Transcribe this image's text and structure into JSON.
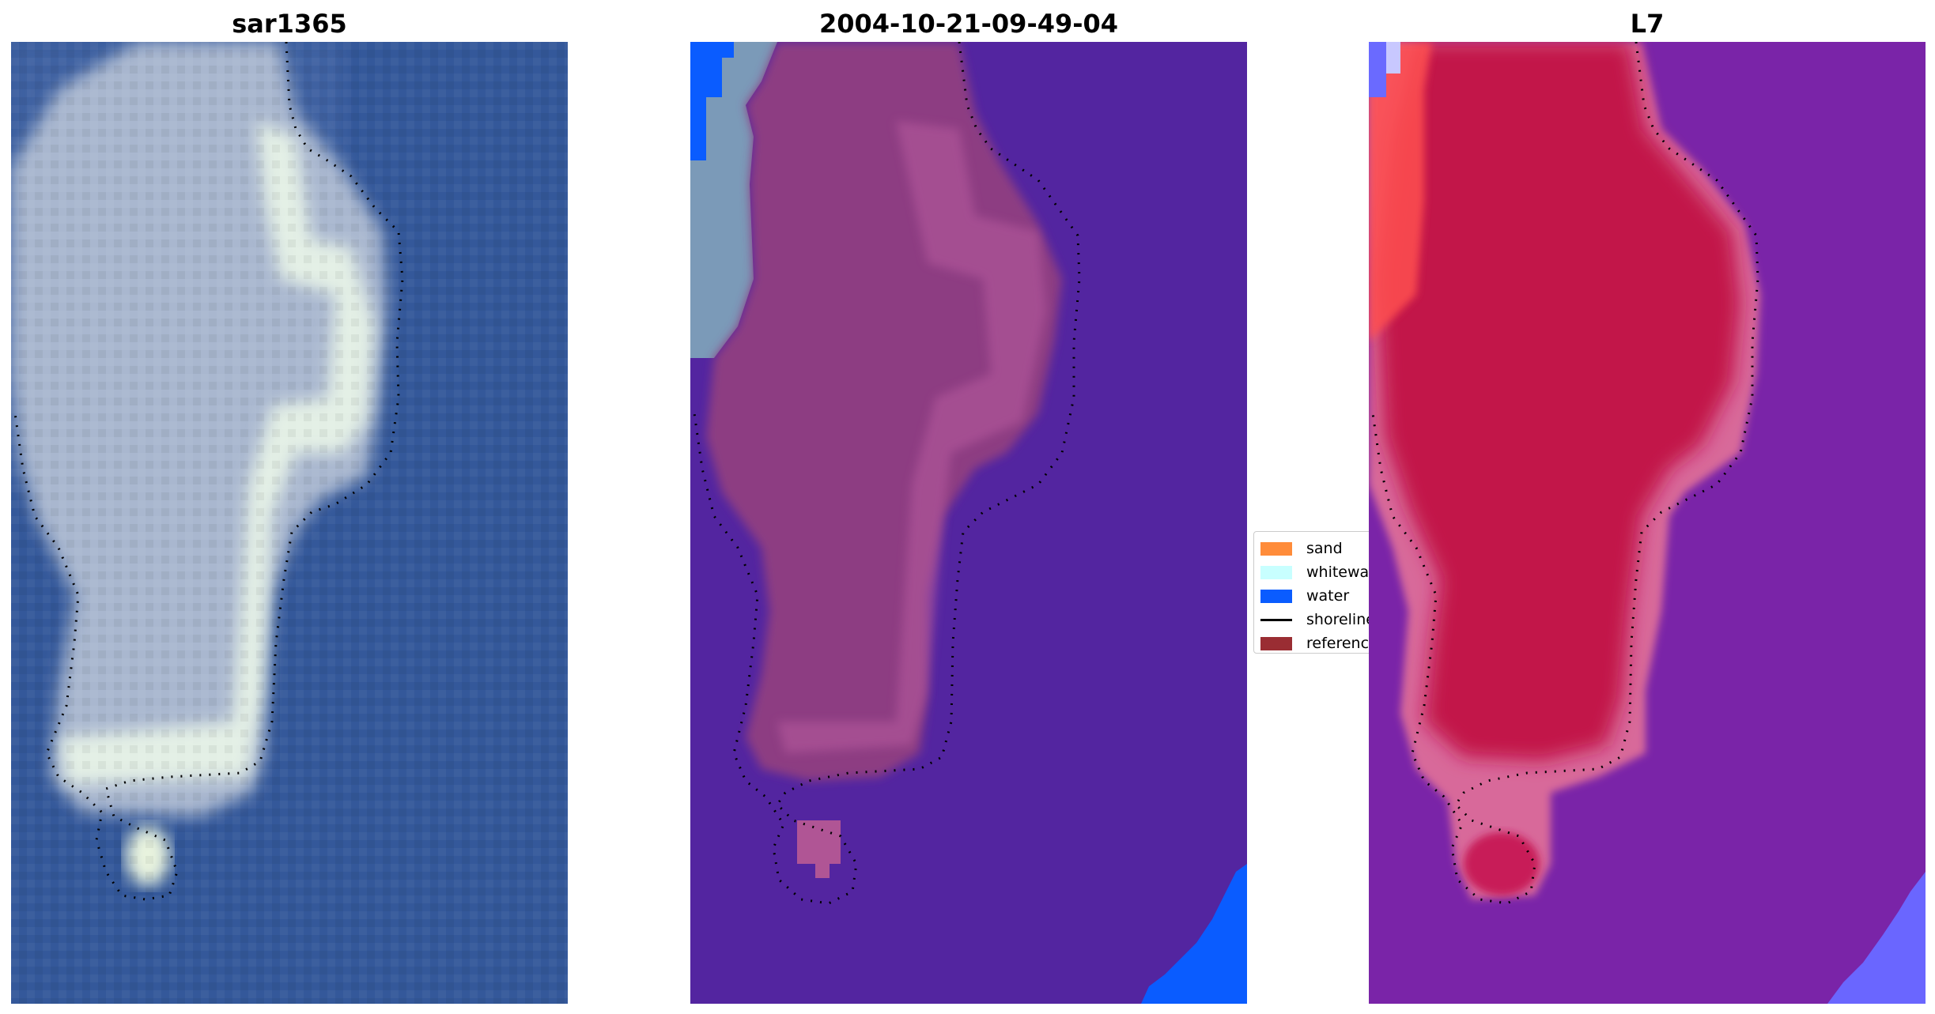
{
  "panels": [
    {
      "title": "sar1365",
      "kind": "rgb"
    },
    {
      "title": "2004-10-21-09-49-04",
      "kind": "classified"
    },
    {
      "title": "L7",
      "kind": "index"
    }
  ],
  "legend": {
    "items": [
      {
        "label": "sand",
        "color": "#ff8c3a"
      },
      {
        "label": "whitewater",
        "color": "#c8ffff"
      },
      {
        "label": "water",
        "color": "#0a5cff"
      },
      {
        "label": "shoreline",
        "color": "#000000"
      },
      {
        "label": "reference",
        "color": "#9a2d33"
      }
    ]
  },
  "colors": {
    "rgb_water": "#34589a",
    "rgb_land": "#aebbd0",
    "rgb_bright": "#e6f2e6",
    "class_background": "#5325a0",
    "class_land": "#8d3d82",
    "class_water": "#0a5cff",
    "class_whitewater": "#7b9ab8",
    "index_background": "#7a24a8",
    "index_land": "#c2144a",
    "index_edge": "#d8699a",
    "index_blue": "#5a5aff"
  }
}
